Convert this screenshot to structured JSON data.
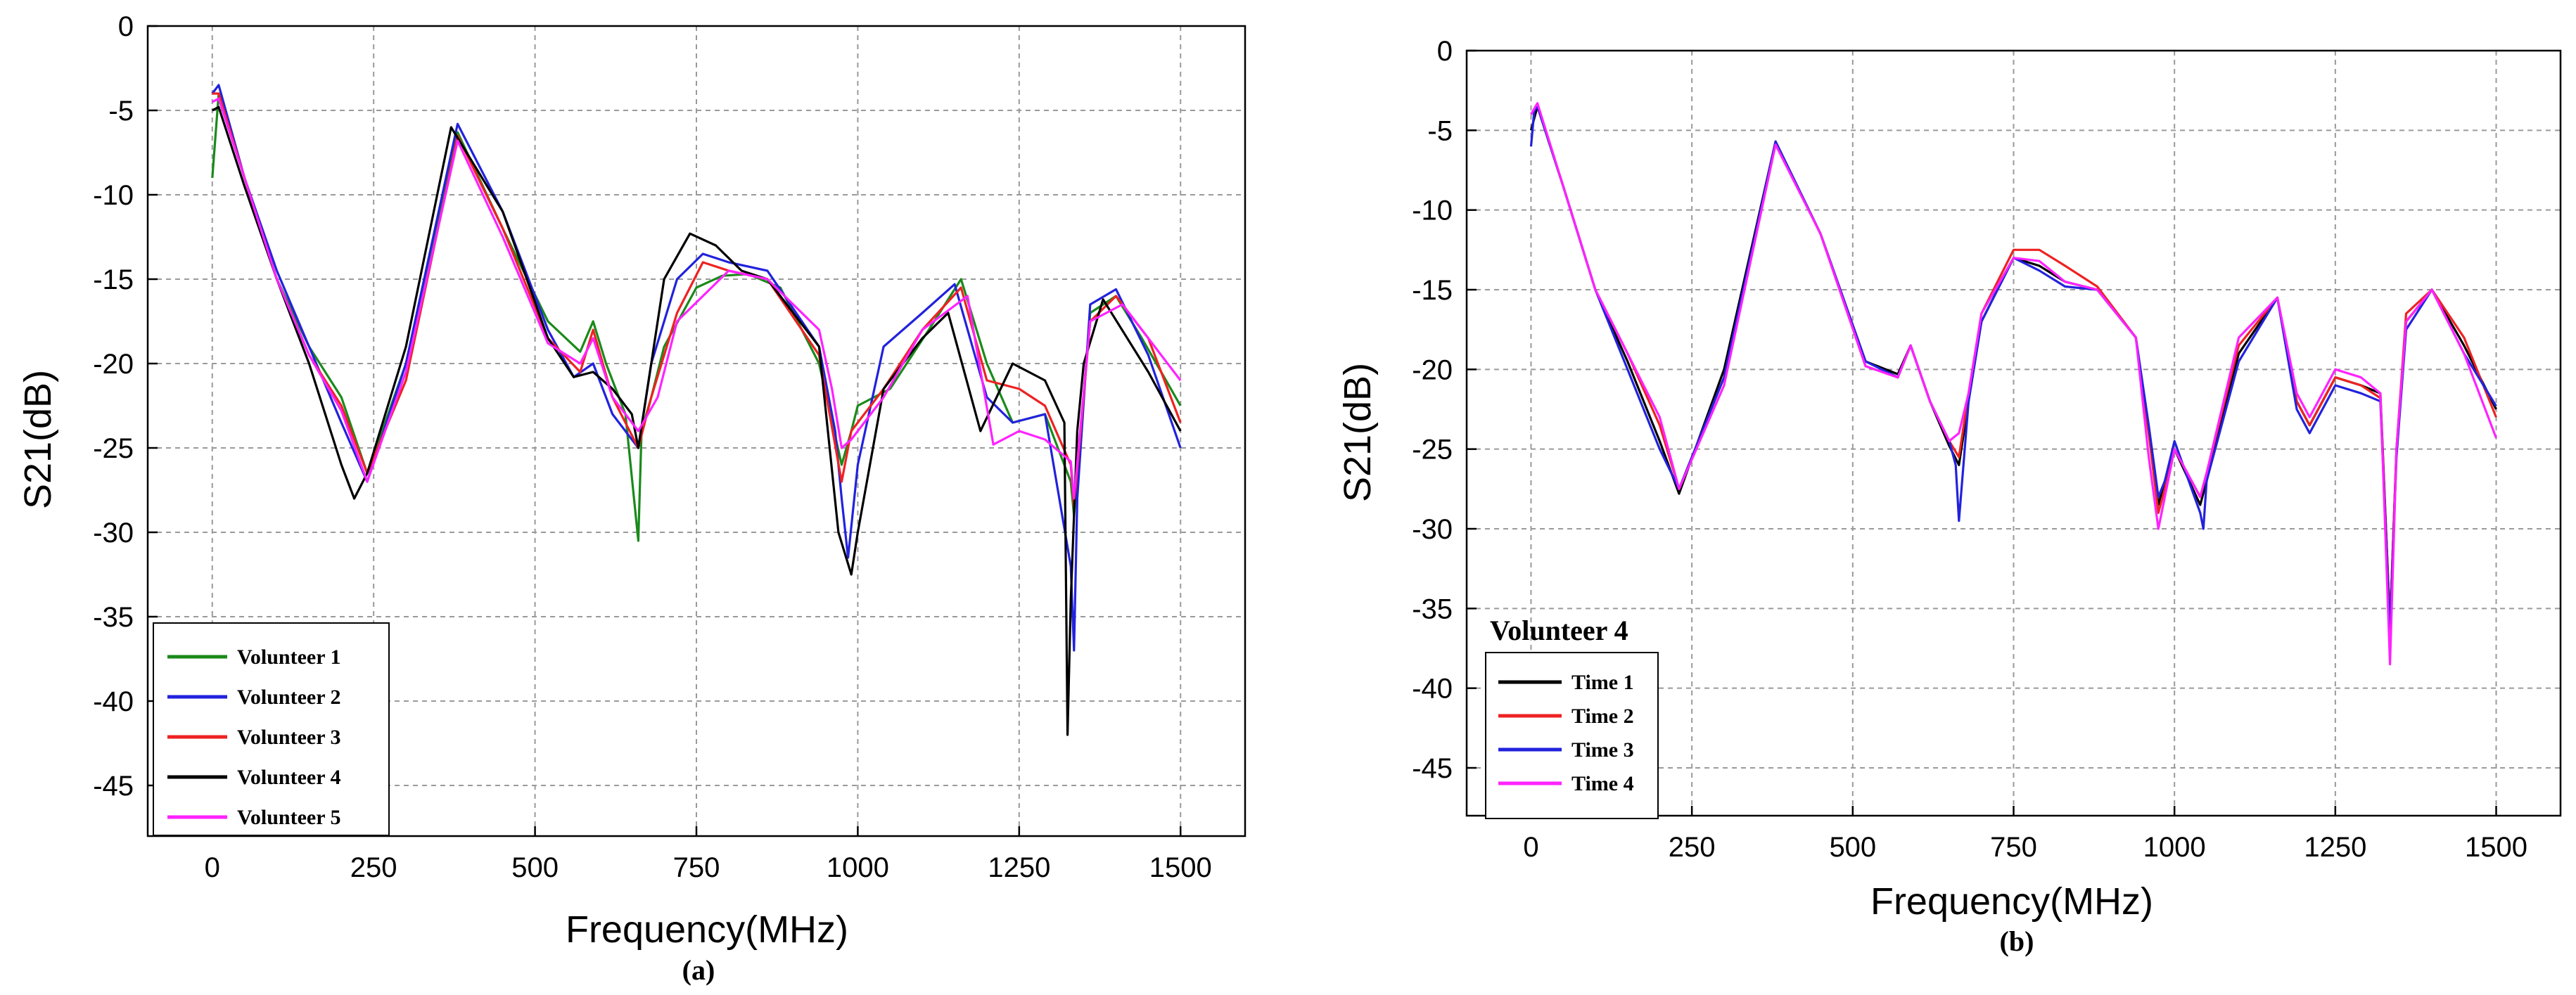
{
  "figure": {
    "panels": [
      "(a)",
      "(b)"
    ]
  },
  "chart_data": [
    {
      "panel_label": "(a)",
      "type": "line",
      "title": "",
      "xlabel": "Frequency(MHz)",
      "ylabel": "S21(dB)",
      "xlim": [
        -100,
        1600
      ],
      "ylim": [
        -48,
        0
      ],
      "xticks": [
        0,
        250,
        500,
        750,
        1000,
        1250,
        1500
      ],
      "yticks": [
        0,
        -5,
        -10,
        -15,
        -20,
        -25,
        -30,
        -35,
        -40,
        -45
      ],
      "grid": true,
      "legend": {
        "position": "bottom-left",
        "title": ""
      },
      "series": [
        {
          "name": "Volunteer 1",
          "color": "#1a8a1a",
          "x": [
            0,
            10,
            50,
            100,
            150,
            200,
            240,
            300,
            380,
            450,
            520,
            570,
            590,
            610,
            640,
            660,
            665,
            680,
            700,
            750,
            790,
            830,
            880,
            940,
            975,
            990,
            1000,
            1050,
            1110,
            1160,
            1200,
            1240,
            1290,
            1330,
            1335,
            1360,
            1400,
            1440,
            1500
          ],
          "y": [
            -9,
            -4,
            -9,
            -15,
            -19,
            -22,
            -26.5,
            -20,
            -6.3,
            -12,
            -17.5,
            -19.3,
            -17.5,
            -20,
            -23,
            -30.5,
            -24,
            -22,
            -19,
            -15.5,
            -14.8,
            -14.7,
            -15.5,
            -20,
            -26,
            -24,
            -22.5,
            -21.5,
            -18,
            -15,
            -20,
            -23.5,
            -23,
            -27,
            -29,
            -17,
            -16,
            -18.5,
            -22.5
          ]
        },
        {
          "name": "Volunteer 2",
          "color": "#2222dd",
          "x": [
            0,
            10,
            50,
            100,
            150,
            200,
            240,
            300,
            380,
            450,
            520,
            560,
            590,
            620,
            650,
            660,
            680,
            720,
            760,
            800,
            860,
            940,
            965,
            975,
            985,
            1000,
            1040,
            1100,
            1150,
            1200,
            1240,
            1290,
            1330,
            1335,
            1340,
            1360,
            1400,
            1450,
            1500
          ],
          "y": [
            -4,
            -3.5,
            -9,
            -14.5,
            -19,
            -23.5,
            -27,
            -20,
            -5.8,
            -11,
            -18,
            -20.8,
            -20,
            -23,
            -24.5,
            -25,
            -20,
            -15,
            -13.5,
            -14,
            -14.5,
            -19,
            -24,
            -28,
            -31.5,
            -26,
            -19,
            -17,
            -15.3,
            -22,
            -23.5,
            -23,
            -32,
            -37,
            -28,
            -16.5,
            -15.6,
            -19.5,
            -25
          ]
        },
        {
          "name": "Volunteer 3",
          "color": "#ee2222",
          "x": [
            0,
            10,
            50,
            100,
            150,
            200,
            240,
            300,
            380,
            450,
            520,
            570,
            590,
            620,
            660,
            680,
            720,
            760,
            800,
            860,
            940,
            975,
            990,
            1040,
            1100,
            1160,
            1200,
            1250,
            1290,
            1330,
            1335,
            1360,
            1400,
            1450,
            1500
          ],
          "y": [
            -4,
            -4,
            -9,
            -15,
            -19.5,
            -22.5,
            -26.5,
            -21,
            -6.5,
            -12,
            -18.5,
            -20.5,
            -18,
            -22,
            -25,
            -22,
            -17,
            -14,
            -14.5,
            -15,
            -19.5,
            -27,
            -24,
            -21.5,
            -18,
            -15.5,
            -21,
            -21.5,
            -22.5,
            -26,
            -28.5,
            -17.5,
            -16,
            -18.5,
            -23.5
          ]
        },
        {
          "name": "Volunteer 4",
          "color": "#000000",
          "x": [
            0,
            10,
            50,
            100,
            150,
            200,
            220,
            240,
            300,
            370,
            450,
            520,
            560,
            590,
            620,
            650,
            660,
            680,
            700,
            740,
            780,
            820,
            860,
            940,
            970,
            990,
            1000,
            1040,
            1100,
            1140,
            1190,
            1240,
            1290,
            1320,
            1325,
            1330,
            1340,
            1350,
            1380,
            1450,
            1500
          ],
          "y": [
            -5,
            -4.8,
            -9.5,
            -15,
            -20,
            -26,
            -28,
            -26.5,
            -19,
            -6,
            -11,
            -18.5,
            -20.8,
            -20.5,
            -21.5,
            -23,
            -25,
            -20,
            -15,
            -12.3,
            -13,
            -14.5,
            -15,
            -19,
            -30,
            -32.5,
            -30,
            -21.5,
            -18.5,
            -17,
            -24,
            -20,
            -21,
            -23.5,
            -42,
            -34,
            -24,
            -20,
            -16.2,
            -20.5,
            -24
          ]
        },
        {
          "name": "Volunteer 5",
          "color": "#ff22ff",
          "x": [
            0,
            10,
            50,
            100,
            150,
            200,
            240,
            300,
            380,
            450,
            520,
            570,
            590,
            620,
            660,
            690,
            720,
            760,
            800,
            860,
            940,
            960,
            975,
            990,
            1040,
            1100,
            1170,
            1210,
            1250,
            1290,
            1330,
            1335,
            1360,
            1410,
            1450,
            1500
          ],
          "y": [
            -4.5,
            -4.3,
            -9,
            -15,
            -19.5,
            -22.8,
            -27,
            -20.5,
            -6.8,
            -12.5,
            -18.8,
            -20,
            -18.5,
            -22,
            -24,
            -22,
            -17.5,
            -16,
            -14.5,
            -15,
            -18,
            -21.5,
            -25,
            -24.5,
            -22,
            -18,
            -16,
            -24.8,
            -24,
            -24.5,
            -25.8,
            -28,
            -17.5,
            -16.5,
            -18.5,
            -21
          ]
        }
      ]
    },
    {
      "panel_label": "(b)",
      "type": "line",
      "title": "",
      "xlabel": "Frequency(MHz)",
      "ylabel": "S21(dB)",
      "xlim": [
        -100,
        1600
      ],
      "ylim": [
        -48,
        0
      ],
      "xticks": [
        0,
        250,
        500,
        750,
        1000,
        1250,
        1500
      ],
      "yticks": [
        0,
        -5,
        -10,
        -15,
        -20,
        -25,
        -30,
        -35,
        -40,
        -45
      ],
      "grid": true,
      "legend": {
        "position": "bottom-left",
        "title": "Volunteer 4"
      },
      "series": [
        {
          "name": "Time 1",
          "color": "#000000",
          "x": [
            0,
            10,
            50,
            100,
            150,
            200,
            230,
            300,
            380,
            450,
            520,
            570,
            590,
            620,
            650,
            665,
            680,
            700,
            750,
            790,
            830,
            880,
            940,
            960,
            975,
            985,
            1000,
            1040,
            1050,
            1100,
            1160,
            1190,
            1210,
            1250,
            1290,
            1320,
            1335,
            1345,
            1360,
            1400,
            1450,
            1500
          ],
          "y": [
            -5,
            -3.5,
            -8.5,
            -15,
            -19.5,
            -24.5,
            -27.8,
            -20,
            -5.7,
            -11.5,
            -19.5,
            -20.3,
            -18.5,
            -22,
            -24.8,
            -26,
            -22,
            -17,
            -13,
            -13.5,
            -14.5,
            -15,
            -18,
            -24,
            -28.5,
            -27,
            -25,
            -28.5,
            -27,
            -19,
            -15.5,
            -22,
            -23.5,
            -20.5,
            -21,
            -21.5,
            -36,
            -25,
            -17,
            -15,
            -18.5,
            -22.5
          ]
        },
        {
          "name": "Time 2",
          "color": "#ee2222",
          "x": [
            0,
            10,
            50,
            100,
            150,
            200,
            230,
            300,
            380,
            450,
            520,
            570,
            590,
            620,
            650,
            665,
            680,
            700,
            750,
            790,
            830,
            880,
            940,
            960,
            975,
            985,
            1000,
            1040,
            1050,
            1100,
            1160,
            1190,
            1210,
            1250,
            1290,
            1320,
            1335,
            1345,
            1360,
            1400,
            1450,
            1500
          ],
          "y": [
            -4,
            -3.5,
            -8.5,
            -15,
            -19,
            -23.5,
            -27.5,
            -20.5,
            -5.8,
            -11.5,
            -19.8,
            -20.5,
            -18.5,
            -22,
            -24.5,
            -25.5,
            -21.5,
            -16.5,
            -12.5,
            -12.5,
            -13.5,
            -14.8,
            -18,
            -24,
            -29,
            -27.5,
            -25,
            -28,
            -26.5,
            -18.5,
            -15.5,
            -22,
            -23.5,
            -20.5,
            -21,
            -21.8,
            -36,
            -25,
            -16.5,
            -15,
            -18,
            -23
          ]
        },
        {
          "name": "Time 3",
          "color": "#2222dd",
          "x": [
            0,
            5,
            10,
            50,
            100,
            150,
            200,
            230,
            300,
            380,
            450,
            520,
            570,
            590,
            620,
            650,
            660,
            665,
            680,
            700,
            750,
            790,
            830,
            880,
            940,
            960,
            975,
            985,
            1000,
            1040,
            1045,
            1050,
            1100,
            1160,
            1190,
            1210,
            1250,
            1290,
            1320,
            1335,
            1345,
            1360,
            1400,
            1450,
            1500
          ],
          "y": [
            -6,
            -3.8,
            -3.5,
            -8.5,
            -15,
            -20,
            -25,
            -27.5,
            -20.5,
            -5.7,
            -11.5,
            -19.5,
            -20.5,
            -18.5,
            -22,
            -24.5,
            -26,
            -29.5,
            -22,
            -17,
            -13,
            -13.8,
            -14.8,
            -15,
            -18,
            -23.5,
            -28,
            -27,
            -24.5,
            -29,
            -30,
            -27,
            -19.5,
            -15.5,
            -22.5,
            -24,
            -21,
            -21.5,
            -22,
            -36.5,
            -25.5,
            -17.5,
            -15,
            -19,
            -22.3
          ]
        },
        {
          "name": "Time 4",
          "color": "#ff22ff",
          "x": [
            0,
            10,
            50,
            100,
            150,
            200,
            230,
            300,
            380,
            450,
            520,
            570,
            590,
            620,
            650,
            665,
            680,
            700,
            750,
            790,
            830,
            880,
            940,
            960,
            975,
            985,
            1000,
            1040,
            1050,
            1100,
            1160,
            1190,
            1210,
            1250,
            1290,
            1320,
            1335,
            1345,
            1360,
            1400,
            1450,
            1500
          ],
          "y": [
            -4,
            -3.3,
            -8.5,
            -15,
            -19,
            -23,
            -27.5,
            -21,
            -5.9,
            -11.5,
            -19.8,
            -20.5,
            -18.5,
            -22,
            -24.5,
            -24,
            -21.5,
            -16.5,
            -13,
            -13.2,
            -14.5,
            -15,
            -18,
            -25.5,
            -30,
            -28,
            -25,
            -28,
            -26.5,
            -18,
            -15.5,
            -21.5,
            -23,
            -20,
            -20.5,
            -21.5,
            -38.5,
            -25,
            -17,
            -15,
            -19,
            -24.3
          ]
        }
      ]
    }
  ]
}
